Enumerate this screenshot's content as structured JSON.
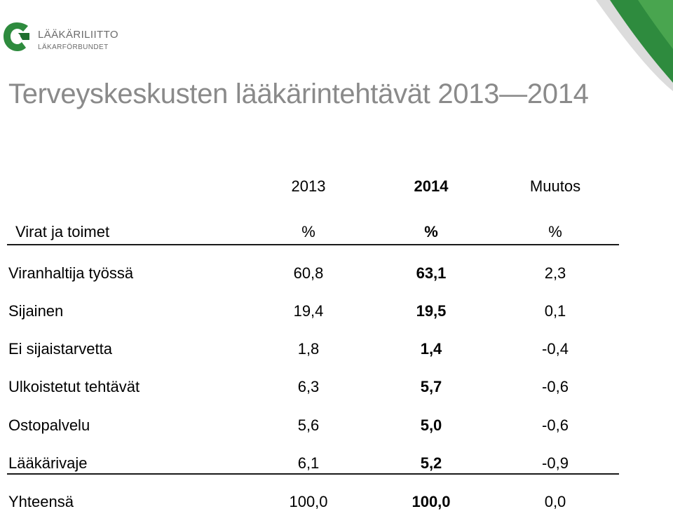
{
  "logo": {
    "line1": "LÄÄKÄRILIITTO",
    "line2": "LÄKARFÖRBUNDET"
  },
  "colors": {
    "accent_green": "#2e8b3e",
    "dark_green": "#1f6e2f",
    "title_grey": "#8a8a8a"
  },
  "title": "Terveyskeskusten lääkärintehtävät 2013—2014",
  "table": {
    "year_headers": [
      "2013",
      "2014",
      "Muutos"
    ],
    "unit_row": {
      "label": "Virat ja toimet",
      "units": [
        "%",
        "%",
        "%"
      ]
    },
    "rows": [
      {
        "label": "Viranhaltija työssä",
        "v2013": "60,8",
        "v2014": "63,1",
        "change": "2,3"
      },
      {
        "label": "Sijainen",
        "v2013": "19,4",
        "v2014": "19,5",
        "change": "0,1"
      },
      {
        "label": "Ei sijaistarvetta",
        "v2013": "1,8",
        "v2014": "1,4",
        "change": "-0,4"
      },
      {
        "label": "Ulkoistetut tehtävät",
        "v2013": "6,3",
        "v2014": "5,7",
        "change": "-0,6"
      },
      {
        "label": "Ostopalvelu",
        "v2013": "5,6",
        "v2014": "5,0",
        "change": "-0,6"
      },
      {
        "label": "Lääkärivaje",
        "v2013": "6,1",
        "v2014": "5,2",
        "change": "-0,9"
      }
    ],
    "total": {
      "label": "Yhteensä",
      "v2013": "100,0",
      "v2014": "100,0",
      "change": "0,0"
    }
  }
}
